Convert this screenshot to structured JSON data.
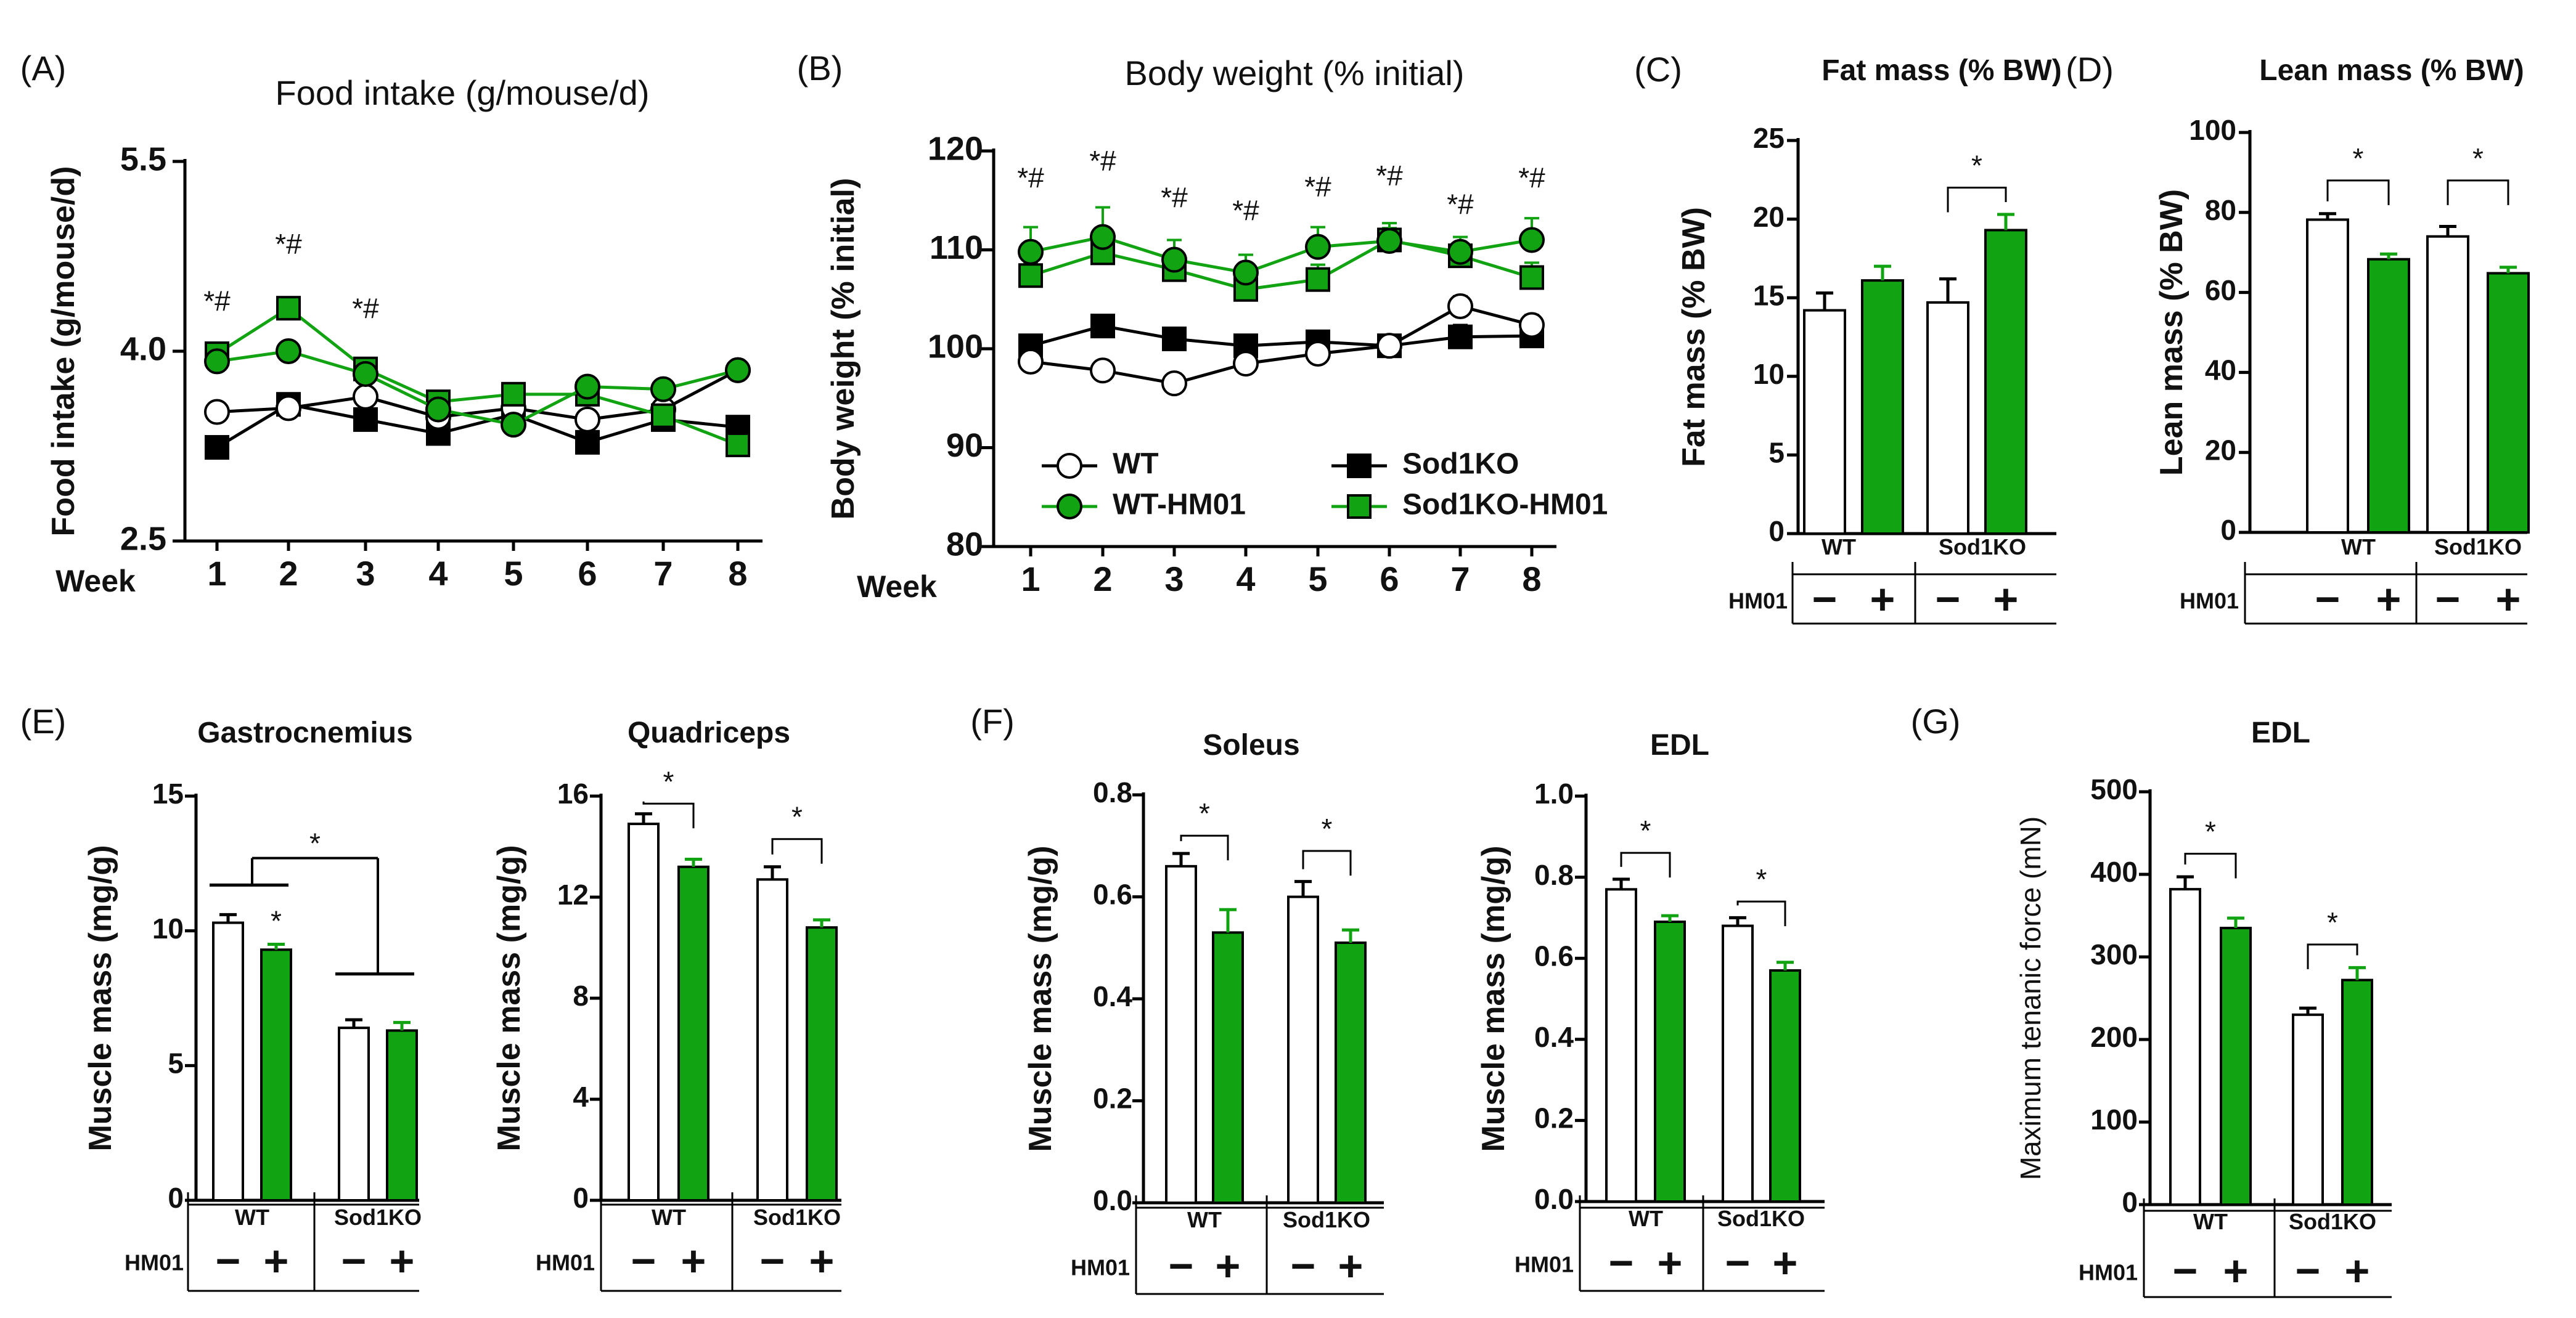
{
  "colors": {
    "wt": "#ffffff",
    "hm": "#12a312",
    "line_wt": "#000000",
    "line_hm": "#12a312",
    "axis": "#000000"
  },
  "markers": {
    "WT": {
      "shape": "circle",
      "fill": "#ffffff",
      "line": "#000000"
    },
    "WT-HM01": {
      "shape": "circle",
      "fill": "#12a312",
      "line": "#12a312"
    },
    "Sod1KO": {
      "shape": "square",
      "fill": "#000000",
      "line": "#000000"
    },
    "Sod1KO-HM01": {
      "shape": "square",
      "fill": "#12a312",
      "line": "#12a312"
    }
  },
  "group_labels": {
    "wt": "WT",
    "ko": "Sod1KO",
    "hm01": "HM01",
    "minus": "−",
    "plus": "+"
  },
  "chart_data": [
    {
      "id": "A",
      "type": "line",
      "panel": "(A)",
      "title": "Food intake (g/mouse/d)",
      "ylabel": "Food intake (g/mouse/d)",
      "xlabel": "Week",
      "x": [
        1,
        2,
        3,
        4,
        5,
        6,
        7,
        8
      ],
      "xticks": [
        "1",
        "2",
        "3",
        "4",
        "5",
        "6",
        "7",
        "8"
      ],
      "ylim": [
        2.5,
        5.5
      ],
      "yticks": [
        "2.5",
        "4.0",
        "5.5"
      ],
      "ytick_values": [
        2.5,
        4.0,
        5.5
      ],
      "series": [
        {
          "name": "WT",
          "values": [
            3.52,
            3.55,
            3.64,
            3.48,
            3.55,
            3.46,
            3.54,
            3.85
          ]
        },
        {
          "name": "WT-HM01",
          "values": [
            3.92,
            4.0,
            3.82,
            3.54,
            3.42,
            3.72,
            3.7,
            3.85
          ]
        },
        {
          "name": "Sod1KO",
          "values": [
            3.24,
            3.58,
            3.46,
            3.35,
            3.5,
            3.28,
            3.46,
            3.4
          ]
        },
        {
          "name": "Sod1KO-HM01",
          "values": [
            3.98,
            4.34,
            3.86,
            3.6,
            3.66,
            3.66,
            3.49,
            3.26
          ]
        }
      ],
      "annotations": [
        {
          "x": 1,
          "y": 4.32,
          "text": "*#"
        },
        {
          "x": 2,
          "y": 4.77,
          "text": "*#"
        },
        {
          "x": 3,
          "y": 4.26,
          "text": "*#"
        }
      ]
    },
    {
      "id": "B",
      "type": "line",
      "panel": "(B)",
      "title": "Body weight (% initial)",
      "ylabel": "Body weight (% initial)",
      "xlabel": "Week",
      "x": [
        1,
        2,
        3,
        4,
        5,
        6,
        7,
        8
      ],
      "xticks": [
        "1",
        "2",
        "3",
        "4",
        "5",
        "6",
        "7",
        "8"
      ],
      "ylim": [
        80,
        120
      ],
      "yticks": [
        "80",
        "90",
        "100",
        "110",
        "120"
      ],
      "ytick_values": [
        80,
        90,
        100,
        110,
        120
      ],
      "series": [
        {
          "name": "WT",
          "values": [
            98.7,
            97.8,
            96.5,
            98.5,
            99.5,
            100.3,
            104.3,
            102.4
          ],
          "errors": [
            0.4,
            0.5,
            0.5,
            0.5,
            0.6,
            0.6,
            1.0,
            1.0
          ]
        },
        {
          "name": "WT-HM01",
          "values": [
            109.8,
            111.3,
            109.0,
            107.7,
            110.3,
            110.9,
            109.8,
            111.0
          ],
          "errors": [
            2.5,
            3.0,
            2.0,
            1.8,
            2.0,
            1.8,
            1.5,
            2.2
          ]
        },
        {
          "name": "Sod1KO",
          "values": [
            100.3,
            102.3,
            101.0,
            100.3,
            100.7,
            100.3,
            101.2,
            101.3
          ],
          "errors": [
            0.6,
            0.8,
            0.6,
            0.5,
            0.7,
            0.6,
            1.2,
            1.0
          ]
        },
        {
          "name": "Sod1KO-HM01",
          "values": [
            107.4,
            109.7,
            108.0,
            106.0,
            107.0,
            111.0,
            109.4,
            107.2
          ],
          "errors": [
            1.2,
            1.5,
            1.2,
            1.5,
            1.5,
            1.2,
            1.0,
            1.5
          ]
        }
      ],
      "annotations": [
        {
          "x": 1,
          "y": 116.3,
          "text": "*#"
        },
        {
          "x": 2,
          "y": 118.0,
          "text": "*#"
        },
        {
          "x": 3,
          "y": 114.3,
          "text": "*#"
        },
        {
          "x": 4,
          "y": 113.0,
          "text": "*#"
        },
        {
          "x": 5,
          "y": 115.4,
          "text": "*#"
        },
        {
          "x": 6,
          "y": 116.5,
          "text": "*#"
        },
        {
          "x": 7,
          "y": 113.6,
          "text": "*#"
        },
        {
          "x": 8,
          "y": 116.3,
          "text": "*#"
        }
      ],
      "legend": [
        "WT",
        "Sod1KO",
        "WT-HM01",
        "Sod1KO-HM01"
      ],
      "legend_position": "bottom"
    },
    {
      "id": "C",
      "type": "bar",
      "panel": "(C)",
      "title": "Fat mass (% BW)",
      "ylabel": "Fat mass (% BW)",
      "ylim": [
        0,
        25
      ],
      "yticks": [
        "0",
        "5",
        "10",
        "15",
        "20",
        "25"
      ],
      "ytick_values": [
        0,
        5,
        10,
        15,
        20,
        25
      ],
      "categories": [
        "WT −",
        "WT +",
        "Sod1KO −",
        "Sod1KO +"
      ],
      "values": [
        14.2,
        16.1,
        14.7,
        19.3
      ],
      "errors": [
        1.1,
        0.9,
        1.5,
        1.0
      ],
      "significance": [
        {
          "pair": [
            2,
            3
          ],
          "y": 22,
          "text": "*"
        }
      ]
    },
    {
      "id": "D",
      "type": "bar",
      "panel": "(D)",
      "title": "Lean mass (% BW)",
      "ylabel": "Lean mass (% BW)",
      "ylim": [
        0,
        100
      ],
      "yticks": [
        "0",
        "20",
        "40",
        "60",
        "80",
        "100"
      ],
      "ytick_values": [
        0,
        20,
        40,
        60,
        80,
        100
      ],
      "categories": [
        "WT −",
        "WT +",
        "Sod1KO −",
        "Sod1KO +"
      ],
      "values": [
        78.2,
        68.3,
        74.0,
        64.8
      ],
      "errors": [
        1.5,
        1.3,
        2.5,
        1.5
      ],
      "significance": [
        {
          "pair": [
            0,
            1
          ],
          "y": 88,
          "text": "*"
        },
        {
          "pair": [
            2,
            3
          ],
          "y": 88,
          "text": "*"
        }
      ]
    },
    {
      "id": "E1",
      "type": "bar",
      "panel": "(E)",
      "title": "Gastrocnemius",
      "ylabel": "Muscle mass (mg/g)",
      "ylim": [
        0,
        15
      ],
      "yticks": [
        "0",
        "5",
        "10",
        "15"
      ],
      "ytick_values": [
        0,
        5,
        10,
        15
      ],
      "categories": [
        "WT −",
        "WT +",
        "Sod1KO −",
        "Sod1KO +"
      ],
      "values": [
        10.3,
        9.3,
        6.4,
        6.3
      ],
      "errors": [
        0.3,
        0.2,
        0.3,
        0.3
      ],
      "significance": [
        {
          "between_groups": true,
          "y": 12.7,
          "text": "*"
        }
      ],
      "annotations": [
        {
          "bar": 1,
          "text": "*"
        }
      ]
    },
    {
      "id": "E2",
      "type": "bar",
      "title": "Quadriceps",
      "ylabel": "Muscle mass (mg/g)",
      "ylim": [
        0,
        16
      ],
      "yticks": [
        "0",
        "4",
        "8",
        "12",
        "16"
      ],
      "ytick_values": [
        0,
        4,
        8,
        12,
        16
      ],
      "categories": [
        "WT −",
        "WT +",
        "Sod1KO −",
        "Sod1KO +"
      ],
      "values": [
        14.9,
        13.2,
        12.7,
        10.8
      ],
      "errors": [
        0.4,
        0.3,
        0.5,
        0.3
      ],
      "significance": [
        {
          "pair": [
            0,
            1
          ],
          "y": 15.7,
          "text": "*"
        },
        {
          "pair": [
            2,
            3
          ],
          "y": 14.3,
          "text": "*"
        }
      ]
    },
    {
      "id": "F1",
      "type": "bar",
      "panel": "(F)",
      "title": "Soleus",
      "ylabel": "Muscle mass (mg/g)",
      "ylim": [
        0,
        0.8
      ],
      "yticks": [
        "0.0",
        "0.2",
        "0.4",
        "0.6",
        "0.8"
      ],
      "ytick_values": [
        0,
        0.2,
        0.4,
        0.6,
        0.8
      ],
      "categories": [
        "WT −",
        "WT +",
        "Sod1KO −",
        "Sod1KO +"
      ],
      "values": [
        0.66,
        0.53,
        0.6,
        0.51
      ],
      "errors": [
        0.025,
        0.045,
        0.03,
        0.025
      ],
      "significance": [
        {
          "pair": [
            0,
            1
          ],
          "y": 0.72,
          "text": "*"
        },
        {
          "pair": [
            2,
            3
          ],
          "y": 0.69,
          "text": "*"
        }
      ]
    },
    {
      "id": "F2",
      "type": "bar",
      "title": "EDL",
      "ylabel": "Muscle mass (mg/g)",
      "ylim": [
        0,
        1.0
      ],
      "yticks": [
        "0.0",
        "0.2",
        "0.4",
        "0.6",
        "0.8",
        "1.0"
      ],
      "ytick_values": [
        0,
        0.2,
        0.4,
        0.6,
        0.8,
        1.0
      ],
      "categories": [
        "WT −",
        "WT +",
        "Sod1KO −",
        "Sod1KO +"
      ],
      "values": [
        0.77,
        0.69,
        0.68,
        0.57
      ],
      "errors": [
        0.025,
        0.015,
        0.02,
        0.02
      ],
      "significance": [
        {
          "pair": [
            0,
            1
          ],
          "y": 0.86,
          "text": "*"
        },
        {
          "pair": [
            2,
            3
          ],
          "y": 0.74,
          "text": "*"
        }
      ]
    },
    {
      "id": "G",
      "type": "bar",
      "panel": "(G)",
      "title": "EDL",
      "ylabel": "Maximum tenanic force (mN)",
      "ylim": [
        0,
        500
      ],
      "yticks": [
        "0",
        "100",
        "200",
        "300",
        "400",
        "500"
      ],
      "ytick_values": [
        0,
        100,
        200,
        300,
        400,
        500
      ],
      "categories": [
        "WT −",
        "WT +",
        "Sod1KO −",
        "Sod1KO +"
      ],
      "values": [
        382,
        335,
        230,
        272
      ],
      "errors": [
        15,
        12,
        8,
        15
      ],
      "significance": [
        {
          "pair": [
            0,
            1
          ],
          "y": 425,
          "text": "*"
        },
        {
          "pair": [
            2,
            3
          ],
          "y": 315,
          "text": "*"
        }
      ]
    }
  ]
}
